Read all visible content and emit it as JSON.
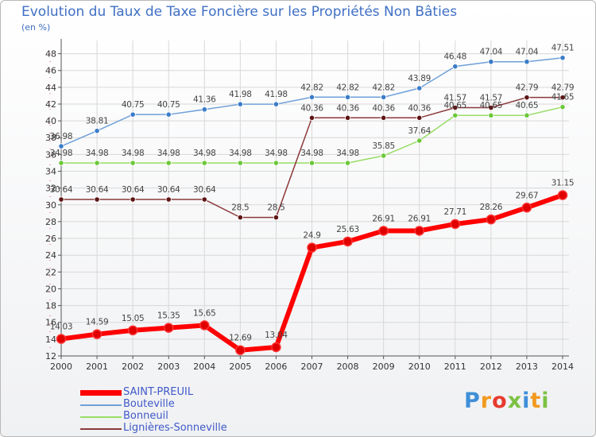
{
  "title": "Evolution du Taux de Taxe Foncière sur les Propriétés Non Bâties",
  "unit_label": "(en %)",
  "logo_text": "Proxiti",
  "colors": {
    "axis": "#555555",
    "grid": "#d8d8d8",
    "label": "#333333"
  },
  "chart_data": {
    "type": "line",
    "x": [
      "2000",
      "2001",
      "2002",
      "2003",
      "2004",
      "2005",
      "2006",
      "2007",
      "2008",
      "2009",
      "2010",
      "2011",
      "2012",
      "2013",
      "2014"
    ],
    "ylim": [
      12,
      49
    ],
    "yticks": [
      12,
      14,
      16,
      18,
      20,
      22,
      24,
      26,
      28,
      30,
      32,
      34,
      36,
      38,
      40,
      42,
      44,
      46,
      48
    ],
    "grid": true,
    "legend_position": "bottom-left",
    "series": [
      {
        "name": "SAINT-PREUIL",
        "color": "#ff0000",
        "marker": "#e00000",
        "width": 6,
        "values": [
          14.03,
          14.59,
          15.05,
          15.35,
          15.65,
          12.69,
          13.04,
          24.9,
          25.63,
          26.91,
          26.91,
          27.71,
          28.26,
          29.67,
          31.15
        ],
        "labels": [
          "14.03",
          "14.59",
          "15.05",
          "15.35",
          "15.65",
          "12.69",
          "13.04",
          "24.9",
          "25.63",
          "26.91",
          "26.91",
          "27.71",
          "28.26",
          "29.67",
          "31.15"
        ]
      },
      {
        "name": "Bouteville",
        "color": "#6fa0d8",
        "marker": "#3a7cc8",
        "width": 1.5,
        "values": [
          36.98,
          38.81,
          40.75,
          40.75,
          41.36,
          41.98,
          41.98,
          42.82,
          42.82,
          42.82,
          43.89,
          46.48,
          47.04,
          47.04,
          47.51
        ],
        "labels": [
          "36.98",
          "38.81",
          "40.75",
          "40.75",
          "41.36",
          "41.98",
          "41.98",
          "42.82",
          "42.82",
          "42.82",
          "43.89",
          "46.48",
          "47.04",
          "47.04",
          "47.51"
        ]
      },
      {
        "name": "Bonneuil",
        "color": "#99dd66",
        "marker": "#6cc83a",
        "width": 1.5,
        "values": [
          34.98,
          34.98,
          34.98,
          34.98,
          34.98,
          34.98,
          34.98,
          34.98,
          34.98,
          35.85,
          37.64,
          40.65,
          40.65,
          40.65,
          41.65
        ],
        "labels": [
          "34.98",
          "34.98",
          "34.98",
          "34.98",
          "34.98",
          "34.98",
          "34.98",
          "34.98",
          "34.98",
          "35.85",
          "37.64",
          "40.65",
          "40.65",
          "40.65",
          "41.65"
        ]
      },
      {
        "name": "Lignières-Sonneville",
        "color": "#8b3a3a",
        "marker": "#5e1515",
        "width": 1.5,
        "values": [
          30.64,
          30.64,
          30.64,
          30.64,
          30.64,
          28.5,
          28.5,
          40.36,
          40.36,
          40.36,
          40.36,
          41.57,
          41.57,
          42.79,
          42.79
        ],
        "labels": [
          "30.64",
          "30.64",
          "30.64",
          "30.64",
          "30.64",
          "28.5",
          "28.5",
          "40.36",
          "40.36",
          "40.36",
          "40.36",
          "41.57",
          "41.57",
          "42.79",
          "42.79"
        ]
      }
    ]
  }
}
